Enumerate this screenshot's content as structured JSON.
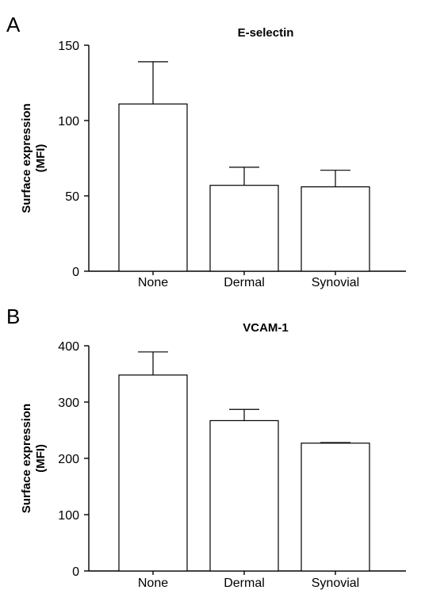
{
  "chart_data": [
    {
      "panel": "A",
      "type": "bar",
      "title": "E-selectin",
      "ylabel": "Surface expression (MFI)",
      "ylabel_lines": [
        "Surface expression",
        "(MFI)"
      ],
      "xlabel": "",
      "categories": [
        "None",
        "Dermal",
        "Synovial"
      ],
      "values": [
        111,
        57,
        56
      ],
      "error_upper": [
        139,
        69,
        67
      ],
      "ylim": [
        0,
        150
      ],
      "yticks": [
        0,
        50,
        100,
        150
      ],
      "grid": false,
      "legend": "none"
    },
    {
      "panel": "B",
      "type": "bar",
      "title": "VCAM-1",
      "ylabel": "Surface expression (MFI)",
      "ylabel_lines": [
        "Surface expression",
        "(MFI)"
      ],
      "xlabel": "",
      "categories": [
        "None",
        "Dermal",
        "Synovial"
      ],
      "values": [
        348,
        267,
        227
      ],
      "error_upper": [
        389,
        287,
        228
      ],
      "ylim": [
        0,
        400
      ],
      "yticks": [
        0,
        100,
        200,
        300,
        400
      ],
      "grid": false,
      "legend": "none"
    }
  ]
}
